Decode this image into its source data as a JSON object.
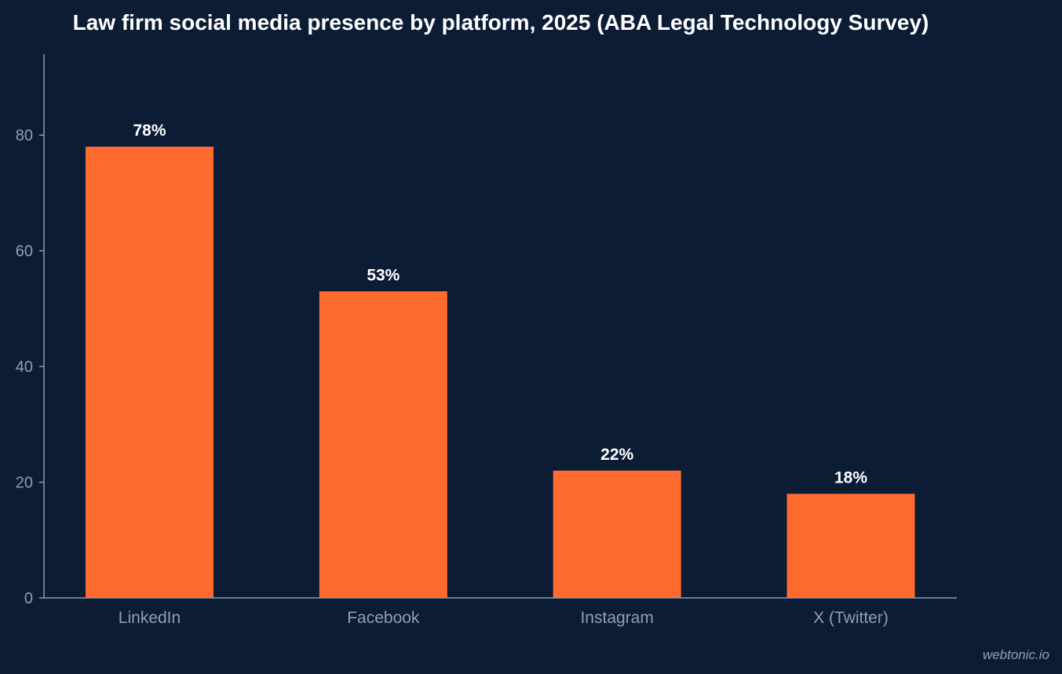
{
  "colors": {
    "background": "#0c1c35",
    "bar": "#ff6a2e",
    "axis": "#8a9ab4",
    "tick_label": "#8f9fb8",
    "title": "#ffffff",
    "value_label": "#ffffff",
    "credit": "#8f9fb8"
  },
  "credit": "webtonic.io",
  "chart_data": {
    "type": "bar",
    "title": "Law firm social media presence by platform, 2025 (ABA Legal Technology Survey)",
    "xlabel": "",
    "ylabel": "",
    "categories": [
      "LinkedIn",
      "Facebook",
      "Instagram",
      "X (Twitter)"
    ],
    "values": [
      78,
      53,
      22,
      18
    ],
    "value_labels": [
      "78%",
      "53%",
      "22%",
      "18%"
    ],
    "y_ticks": [
      0,
      20,
      40,
      60,
      80
    ],
    "ylim": [
      0,
      94
    ],
    "grid": false,
    "legend": "none"
  }
}
